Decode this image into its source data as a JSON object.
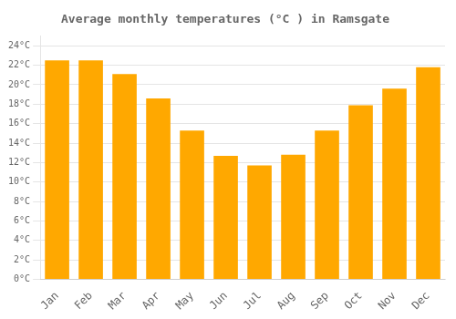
{
  "chart_data": {
    "type": "bar",
    "title": "Average monthly temperatures (°C ) in Ramsgate",
    "categories": [
      "Jan",
      "Feb",
      "Mar",
      "Apr",
      "May",
      "Jun",
      "Jul",
      "Aug",
      "Sep",
      "Oct",
      "Nov",
      "Dec"
    ],
    "values": [
      22.5,
      22.5,
      21.1,
      18.6,
      15.3,
      12.7,
      11.7,
      12.8,
      15.3,
      17.9,
      19.6,
      21.8
    ],
    "color": "#FFA800",
    "ylim": [
      0,
      25
    ],
    "yticks": [
      {
        "value": 0,
        "label": "0°C"
      },
      {
        "value": 2,
        "label": "2°C"
      },
      {
        "value": 4,
        "label": "4°C"
      },
      {
        "value": 6,
        "label": "6°C"
      },
      {
        "value": 8,
        "label": "8°C"
      },
      {
        "value": 10,
        "label": "10°C"
      },
      {
        "value": 12,
        "label": "12°C"
      },
      {
        "value": 14,
        "label": "14°C"
      },
      {
        "value": 16,
        "label": "16°C"
      },
      {
        "value": 18,
        "label": "18°C"
      },
      {
        "value": 20,
        "label": "20°C"
      },
      {
        "value": 22,
        "label": "22°C"
      },
      {
        "value": 24,
        "label": "24°C"
      }
    ],
    "grid": true
  }
}
